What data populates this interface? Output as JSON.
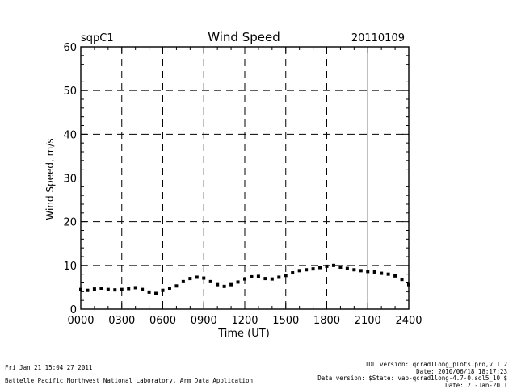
{
  "chart_data": {
    "type": "scatter",
    "title": "Wind Speed",
    "site": "sqpC1",
    "date": "20110109",
    "xlabel": "Time (UT)",
    "ylabel": "Wind Speed, m/s",
    "xlim": [
      0,
      2400
    ],
    "ylim": [
      0,
      60
    ],
    "xticks": [
      "0000",
      "0300",
      "0600",
      "0900",
      "1200",
      "1500",
      "1800",
      "2100",
      "2400"
    ],
    "yticks": [
      "0",
      "10",
      "20",
      "30",
      "40",
      "50",
      "60"
    ],
    "grid": true,
    "series": [
      {
        "marker": "dot",
        "color": "#000000",
        "x": [
          0,
          50,
          100,
          150,
          200,
          250,
          300,
          350,
          400,
          450,
          500,
          550,
          600,
          650,
          700,
          750,
          800,
          850,
          900,
          950,
          1000,
          1050,
          1100,
          1150,
          1200,
          1250,
          1300,
          1350,
          1400,
          1450,
          1500,
          1550,
          1600,
          1650,
          1700,
          1750,
          1800,
          1850,
          1900,
          1950,
          2000,
          2050,
          2100,
          2150,
          2200,
          2250,
          2300,
          2350,
          2400
        ],
        "y": [
          4.5,
          4.3,
          4.6,
          4.8,
          4.5,
          4.4,
          4.5,
          4.7,
          4.9,
          4.5,
          3.9,
          3.6,
          4.3,
          4.8,
          5.3,
          6.3,
          7.0,
          7.3,
          7.1,
          6.3,
          5.6,
          5.2,
          5.6,
          6.2,
          6.9,
          7.4,
          7.5,
          7.0,
          6.9,
          7.3,
          7.7,
          8.3,
          8.8,
          9.0,
          9.2,
          9.5,
          9.8,
          10.0,
          9.6,
          9.3,
          9.0,
          8.8,
          8.6,
          8.5,
          8.2,
          8.0,
          7.6,
          6.8,
          5.6
        ]
      }
    ]
  },
  "footer": {
    "timestamp": "Fri Jan 21 15:04:27 2011",
    "credit": "Battelle Pacific Northwest National Laboratory, Arm Data Application",
    "idl_version": "IDL version: qcrad1long_plots.pro,v 1.2",
    "idl_date": "Date: 2010/06/18 18:17:23",
    "data_version": "Data version: $State: vap-qcrad1long-4.7-0.sol5_10 $",
    "data_date": "Date: 21-Jan-2011"
  }
}
